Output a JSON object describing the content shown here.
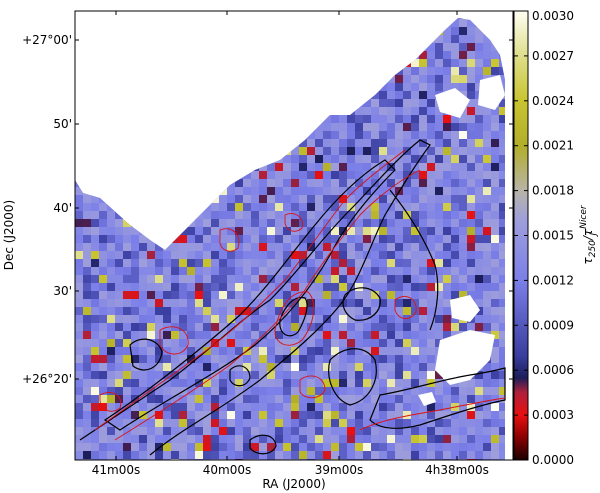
{
  "chart_data": {
    "type": "heatmap",
    "title": "",
    "xlabel": "RA (J2000)",
    "ylabel": "Dec (J2000)",
    "colorbar_label": "τ250/τJNicer",
    "colorbar_label_main": "τ",
    "colorbar_label_sub": "250",
    "colorbar_label_den": "τ",
    "colorbar_label_den_sub": "J",
    "colorbar_label_den_sup": "Nicer",
    "x_ticks": [
      "41m00s",
      "40m00s",
      "39m00s",
      "4h38m00s"
    ],
    "y_ticks": [
      "+27°00'",
      "50'",
      "40'",
      "30'",
      "+26°20'"
    ],
    "colorbar_ticks": [
      "0.0030",
      "0.0027",
      "0.0024",
      "0.0021",
      "0.0018",
      "0.0015",
      "0.0012",
      "0.0009",
      "0.0006",
      "0.0003",
      "0.0000"
    ],
    "colorbar_range": [
      0.0,
      0.003
    ],
    "colormap_stops": [
      {
        "v": 0.0,
        "c": "#1a0000"
      },
      {
        "v": 0.00015,
        "c": "#8a0000"
      },
      {
        "v": 0.0003,
        "c": "#e81010"
      },
      {
        "v": 0.00045,
        "c": "#b0203a"
      },
      {
        "v": 0.00055,
        "c": "#1c1e5a"
      },
      {
        "v": 0.0007,
        "c": "#3a3ea0"
      },
      {
        "v": 0.0012,
        "c": "#7b7fe8"
      },
      {
        "v": 0.0016,
        "c": "#9e9edc"
      },
      {
        "v": 0.0018,
        "c": "#b8b4a8"
      },
      {
        "v": 0.0021,
        "c": "#b2ae2a"
      },
      {
        "v": 0.0024,
        "c": "#c8c430"
      },
      {
        "v": 0.0027,
        "c": "#dede8a"
      },
      {
        "v": 0.003,
        "c": "#fffff4"
      }
    ],
    "map_base_value": 0.0013,
    "contour_colors": {
      "black": "#000000",
      "red": "#dd1111"
    }
  }
}
